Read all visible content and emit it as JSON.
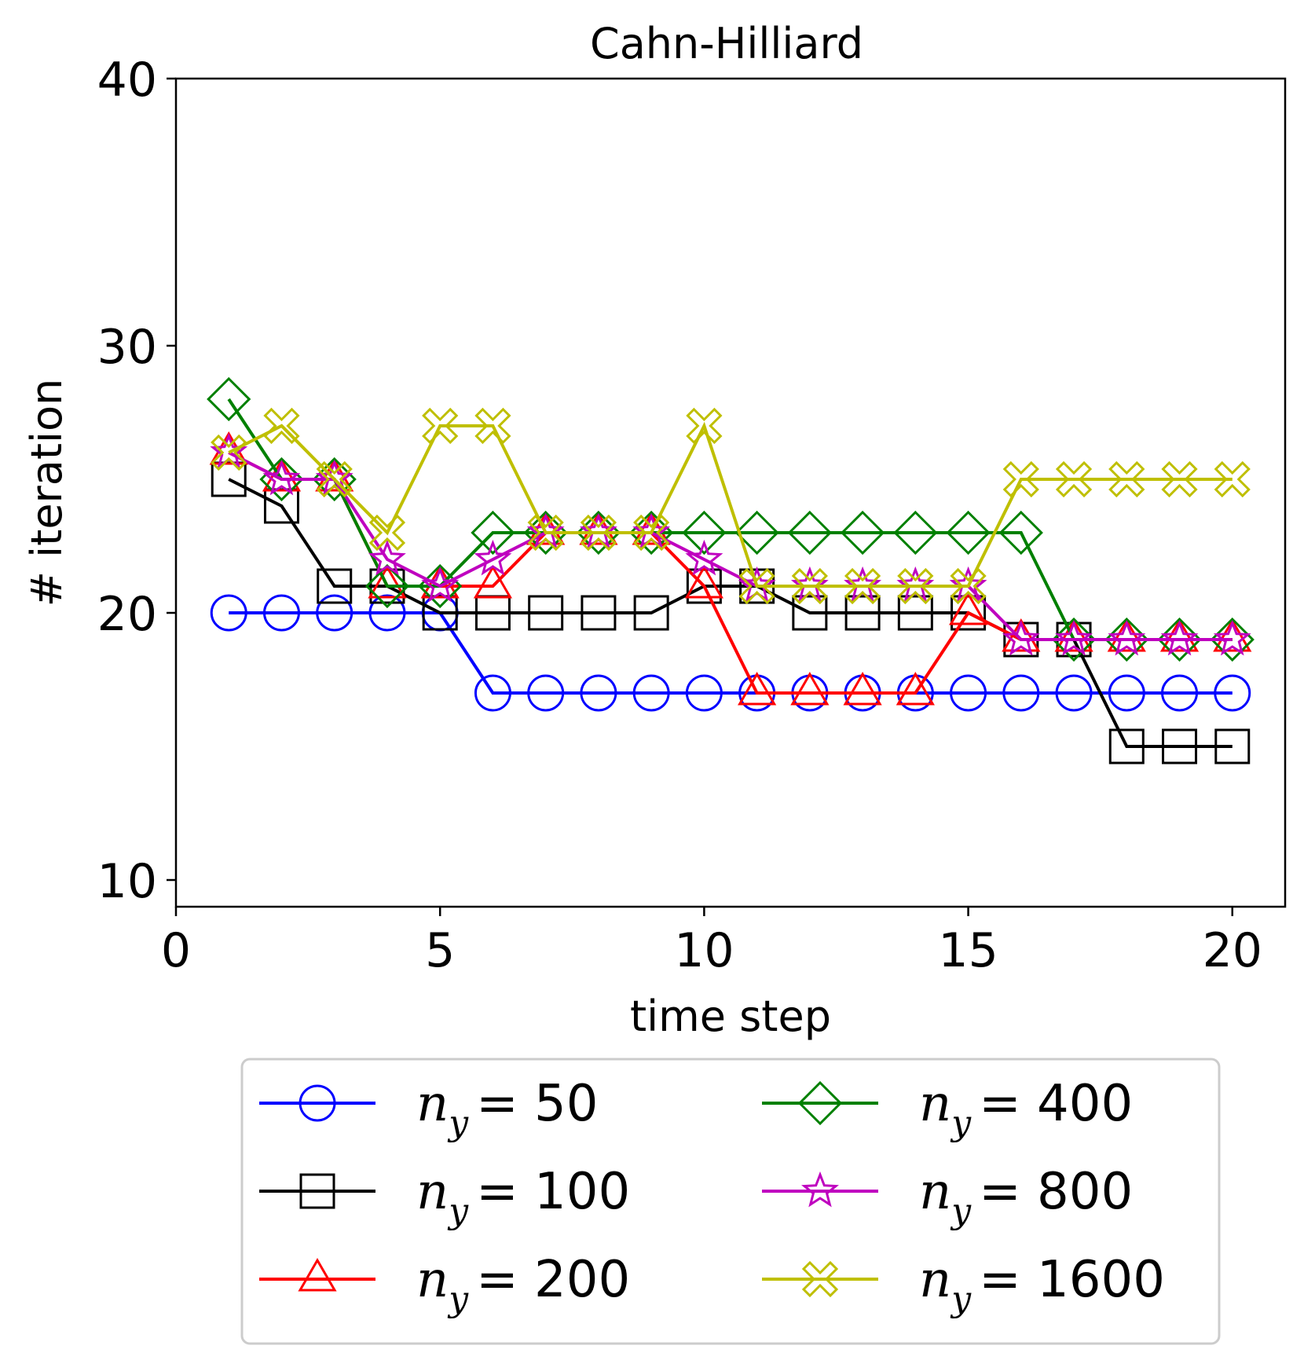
{
  "chart_data": {
    "type": "line",
    "title": "Cahn-Hilliard",
    "xlabel": "time step",
    "ylabel": "# iteration",
    "xlim": [
      0,
      21
    ],
    "ylim": [
      9,
      40
    ],
    "xticks": [
      0,
      5,
      10,
      15,
      20
    ],
    "yticks": [
      10,
      20,
      30,
      40
    ],
    "grid": false,
    "legend_position": "below",
    "x": [
      1,
      2,
      3,
      4,
      5,
      6,
      7,
      8,
      9,
      10,
      11,
      12,
      13,
      14,
      15,
      16,
      17,
      18,
      19,
      20
    ],
    "series": [
      {
        "name": "n_y = 50",
        "sym": "n",
        "sub": "y",
        "eq": "= 50",
        "color": "#0000ff",
        "marker": "circle",
        "values": [
          20,
          20,
          20,
          20,
          20,
          17,
          17,
          17,
          17,
          17,
          17,
          17,
          17,
          17,
          17,
          17,
          17,
          17,
          17,
          17
        ]
      },
      {
        "name": "n_y = 100",
        "sym": "n",
        "sub": "y",
        "eq": "= 100",
        "color": "#000000",
        "marker": "square",
        "values": [
          25,
          24,
          21,
          21,
          20,
          20,
          20,
          20,
          20,
          21,
          21,
          20,
          20,
          20,
          20,
          19,
          19,
          15,
          15,
          15
        ]
      },
      {
        "name": "n_y = 200",
        "sym": "n",
        "sub": "y",
        "eq": "= 200",
        "color": "#ff0000",
        "marker": "triangle",
        "values": [
          26,
          25,
          25,
          21,
          21,
          21,
          23,
          23,
          23,
          21,
          17,
          17,
          17,
          17,
          20,
          19,
          19,
          19,
          19,
          19
        ]
      },
      {
        "name": "n_y = 400",
        "sym": "n",
        "sub": "y",
        "eq": "= 400",
        "color": "#008000",
        "marker": "diamond",
        "values": [
          28,
          25,
          25,
          21,
          21,
          23,
          23,
          23,
          23,
          23,
          23,
          23,
          23,
          23,
          23,
          23,
          19,
          19,
          19,
          19
        ]
      },
      {
        "name": "n_y = 800",
        "sym": "n",
        "sub": "y",
        "eq": "= 800",
        "color": "#bf00bf",
        "marker": "star",
        "values": [
          26,
          25,
          25,
          22,
          21,
          22,
          23,
          23,
          23,
          22,
          21,
          21,
          21,
          21,
          21,
          19,
          19,
          19,
          19,
          19
        ]
      },
      {
        "name": "n_y = 1600",
        "sym": "n",
        "sub": "y",
        "eq": "= 1600",
        "color": "#bfbf00",
        "marker": "x",
        "values": [
          26,
          27,
          25,
          23,
          27,
          27,
          23,
          23,
          23,
          27,
          21,
          21,
          21,
          21,
          21,
          25,
          25,
          25,
          25,
          25
        ]
      }
    ]
  }
}
